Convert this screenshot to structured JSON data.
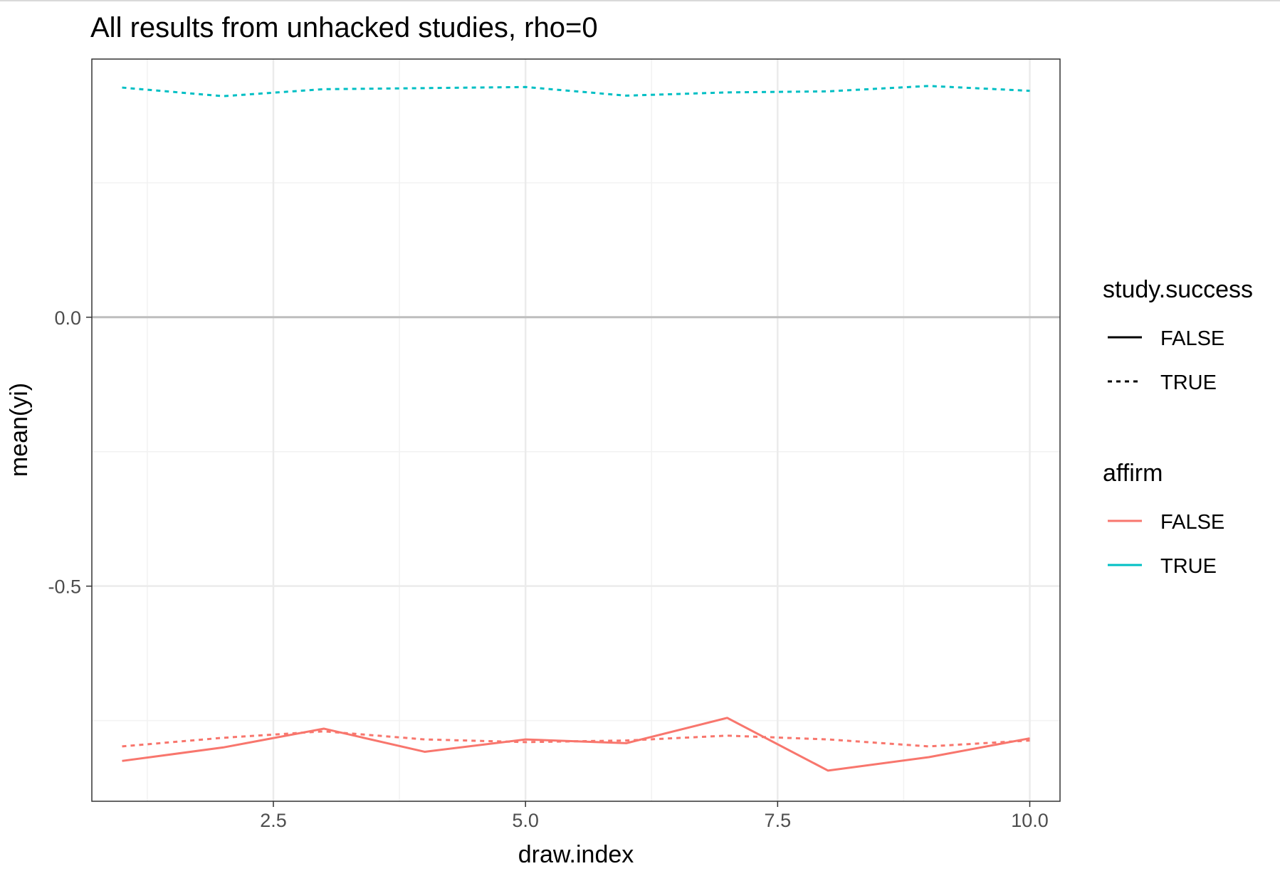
{
  "chart_data": {
    "type": "line",
    "title": "All results from unhacked studies, rho=0",
    "xlabel": "draw.index",
    "ylabel": "mean(yi)",
    "xlim": [
      0.7,
      10.3
    ],
    "ylim": [
      -0.9,
      0.48
    ],
    "x_ticks": [
      2.5,
      5.0,
      7.5,
      10.0
    ],
    "x_tick_labels": [
      "2.5",
      "5.0",
      "7.5",
      "10.0"
    ],
    "y_ticks": [
      0.0,
      -0.5
    ],
    "y_tick_labels": [
      "0.0",
      "-0.5"
    ],
    "grid": true,
    "reference_line": 0,
    "colors": {
      "FALSE": "#F8766D",
      "TRUE": "#00BFC4"
    },
    "x": [
      1,
      2,
      3,
      4,
      5,
      6,
      7,
      8,
      9,
      10
    ],
    "series": [
      {
        "affirm": "FALSE",
        "study_success": "FALSE",
        "linestyle": "solid",
        "values": [
          -0.825,
          -0.8,
          -0.765,
          -0.808,
          -0.785,
          -0.792,
          -0.745,
          -0.843,
          -0.818,
          -0.783
        ]
      },
      {
        "affirm": "FALSE",
        "study_success": "TRUE",
        "linestyle": "dotted",
        "values": [
          -0.798,
          -0.782,
          -0.77,
          -0.785,
          -0.79,
          -0.787,
          -0.778,
          -0.785,
          -0.798,
          -0.787
        ]
      },
      {
        "affirm": "TRUE",
        "study_success": "TRUE",
        "linestyle": "dotted",
        "values": [
          0.427,
          0.411,
          0.424,
          0.426,
          0.428,
          0.412,
          0.418,
          0.42,
          0.43,
          0.421
        ]
      }
    ],
    "legend": {
      "placement": "right",
      "linetype_title": "study.success",
      "linetype_items": [
        "FALSE",
        "TRUE"
      ],
      "color_title": "affirm",
      "color_items": [
        "FALSE",
        "TRUE"
      ]
    }
  }
}
